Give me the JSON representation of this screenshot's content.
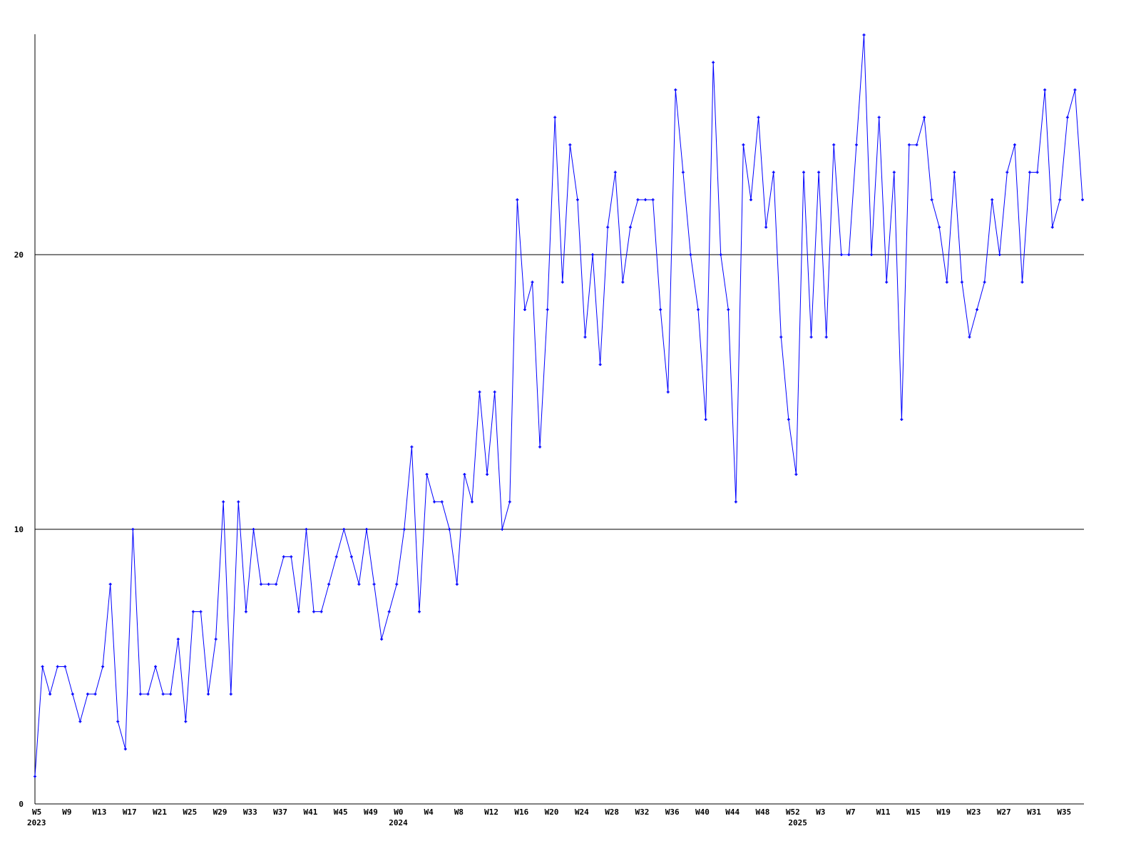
{
  "chart_data": {
    "type": "line",
    "title": "",
    "xlabel": "",
    "ylabel": "",
    "ylim": [
      0,
      28
    ],
    "yticks": [
      0,
      10,
      20
    ],
    "grid": "horizontal at y ticks",
    "legend": "none",
    "colors": {
      "line": "#0000ff",
      "axis": "#000000",
      "grid": "#000000",
      "background": "#ffffff"
    },
    "x_tick_labels": [
      {
        "index": 0,
        "label": "W5"
      },
      {
        "index": 4,
        "label": "W9"
      },
      {
        "index": 8,
        "label": "W13"
      },
      {
        "index": 12,
        "label": "W17"
      },
      {
        "index": 16,
        "label": "W21"
      },
      {
        "index": 20,
        "label": "W25"
      },
      {
        "index": 24,
        "label": "W29"
      },
      {
        "index": 28,
        "label": "W33"
      },
      {
        "index": 32,
        "label": "W37"
      },
      {
        "index": 36,
        "label": "W41"
      },
      {
        "index": 40,
        "label": "W45"
      },
      {
        "index": 44,
        "label": "W49"
      },
      {
        "index": 48,
        "label": "W0"
      },
      {
        "index": 52,
        "label": "W4"
      },
      {
        "index": 56,
        "label": "W8"
      },
      {
        "index": 60,
        "label": "W12"
      },
      {
        "index": 64,
        "label": "W16"
      },
      {
        "index": 68,
        "label": "W20"
      },
      {
        "index": 72,
        "label": "W24"
      },
      {
        "index": 76,
        "label": "W28"
      },
      {
        "index": 80,
        "label": "W32"
      },
      {
        "index": 84,
        "label": "W36"
      },
      {
        "index": 88,
        "label": "W40"
      },
      {
        "index": 92,
        "label": "W44"
      },
      {
        "index": 96,
        "label": "W48"
      },
      {
        "index": 100,
        "label": "W52"
      },
      {
        "index": 104,
        "label": "W3"
      },
      {
        "index": 108,
        "label": "W7"
      },
      {
        "index": 112,
        "label": "W11"
      },
      {
        "index": 116,
        "label": "W15"
      },
      {
        "index": 120,
        "label": "W19"
      },
      {
        "index": 124,
        "label": "W23"
      },
      {
        "index": 128,
        "label": "W27"
      },
      {
        "index": 132,
        "label": "W31"
      },
      {
        "index": 136,
        "label": "W35"
      }
    ],
    "year_labels": [
      {
        "index": 0,
        "label": "2023"
      },
      {
        "index": 48,
        "label": "2024"
      },
      {
        "index": 101,
        "label": "2025"
      }
    ],
    "series": [
      {
        "values": [
          1,
          5,
          4,
          5,
          5,
          4,
          3,
          4,
          4,
          5,
          8,
          3,
          2,
          10,
          4,
          4,
          5,
          4,
          4,
          6,
          3,
          7,
          7,
          4,
          6,
          11,
          4,
          11,
          7,
          10,
          8,
          8,
          8,
          9,
          9,
          7,
          10,
          7,
          7,
          8,
          9,
          10,
          9,
          8,
          10,
          8,
          6,
          7,
          8,
          10,
          13,
          7,
          12,
          11,
          11,
          10,
          8,
          12,
          11,
          15,
          12,
          15,
          10,
          11,
          22,
          18,
          19,
          13,
          18,
          25,
          19,
          24,
          22,
          17,
          20,
          16,
          21,
          23,
          19,
          21,
          22,
          22,
          22,
          18,
          15,
          26,
          23,
          20,
          18,
          14,
          27,
          20,
          18,
          11,
          24,
          22,
          25,
          21,
          23,
          17,
          14,
          12,
          23,
          17,
          23,
          17,
          24,
          20,
          20,
          24,
          28,
          20,
          25,
          19,
          23,
          14,
          24,
          24,
          25,
          22,
          21,
          19,
          23,
          19,
          17,
          18,
          19,
          22,
          20,
          23,
          24,
          19,
          23,
          23,
          26,
          21,
          22,
          25,
          26,
          22
        ]
      }
    ]
  }
}
